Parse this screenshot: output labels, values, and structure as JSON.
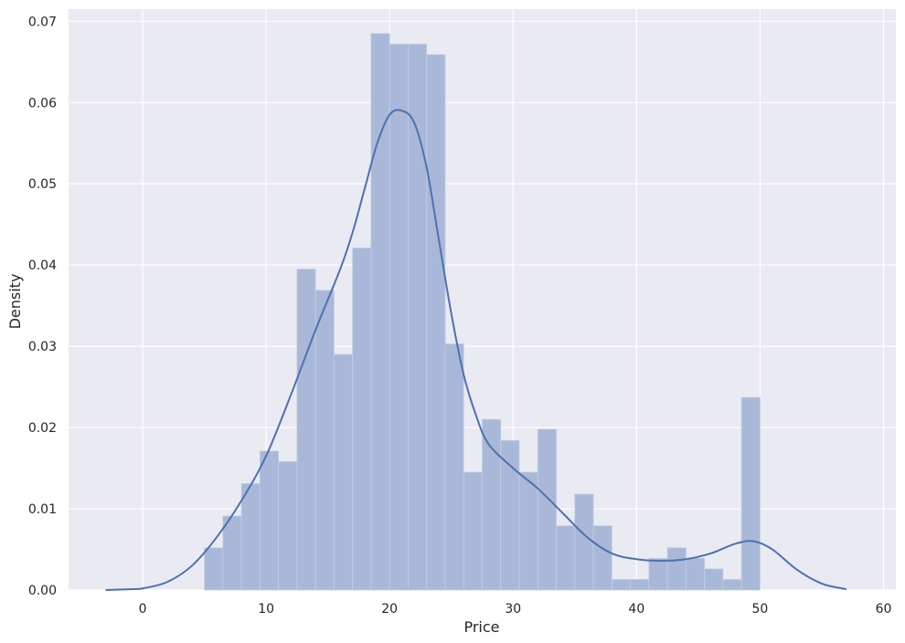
{
  "chart_data": {
    "type": "bar",
    "subtype": "histogram-with-kde",
    "title": "",
    "xlabel": "Price",
    "ylabel": "Density",
    "xlim": [
      -6,
      61
    ],
    "ylim": [
      0,
      0.0715
    ],
    "xticks": [
      0,
      10,
      20,
      30,
      40,
      50,
      60
    ],
    "yticks": [
      0.0,
      0.01,
      0.02,
      0.03,
      0.04,
      0.05,
      0.06,
      0.07
    ],
    "ytick_labels": [
      "0.00",
      "0.01",
      "0.02",
      "0.03",
      "0.04",
      "0.05",
      "0.06",
      "0.07"
    ],
    "grid": true,
    "background": "#eaeaf2",
    "grid_color": "#ffffff",
    "bar_color": "#a9b8d8",
    "line_color": "#4c72b0",
    "bin_width": 1.5,
    "bins": [
      {
        "x0": 5.0,
        "value": 0.0052
      },
      {
        "x0": 6.5,
        "value": 0.0091
      },
      {
        "x0": 8.0,
        "value": 0.0131
      },
      {
        "x0": 9.5,
        "value": 0.0171
      },
      {
        "x0": 11.0,
        "value": 0.0158
      },
      {
        "x0": 12.5,
        "value": 0.0395
      },
      {
        "x0": 14.0,
        "value": 0.0369
      },
      {
        "x0": 15.5,
        "value": 0.029
      },
      {
        "x0": 17.0,
        "value": 0.0421
      },
      {
        "x0": 18.5,
        "value": 0.0685
      },
      {
        "x0": 20.0,
        "value": 0.0672
      },
      {
        "x0": 21.5,
        "value": 0.0672
      },
      {
        "x0": 23.0,
        "value": 0.0659
      },
      {
        "x0": 24.5,
        "value": 0.0303
      },
      {
        "x0": 26.0,
        "value": 0.0145
      },
      {
        "x0": 27.5,
        "value": 0.021
      },
      {
        "x0": 29.0,
        "value": 0.0184
      },
      {
        "x0": 30.5,
        "value": 0.0145
      },
      {
        "x0": 32.0,
        "value": 0.0198
      },
      {
        "x0": 33.5,
        "value": 0.0079
      },
      {
        "x0": 35.0,
        "value": 0.0118
      },
      {
        "x0": 36.5,
        "value": 0.0079
      },
      {
        "x0": 38.0,
        "value": 0.0013
      },
      {
        "x0": 39.5,
        "value": 0.0013
      },
      {
        "x0": 41.0,
        "value": 0.0039
      },
      {
        "x0": 42.5,
        "value": 0.0052
      },
      {
        "x0": 44.0,
        "value": 0.0039
      },
      {
        "x0": 45.5,
        "value": 0.0026
      },
      {
        "x0": 47.0,
        "value": 0.0013
      },
      {
        "x0": 48.5,
        "value": 0.0237
      }
    ],
    "kde": {
      "x": [
        -3,
        -1,
        0,
        2,
        4,
        6,
        8,
        10,
        12,
        14,
        16,
        17,
        18,
        19,
        20,
        21,
        22,
        23,
        24,
        25,
        26,
        27,
        28,
        30,
        32,
        34,
        36,
        38,
        40,
        42,
        44,
        46,
        48,
        49.5,
        51,
        53,
        55,
        57
      ],
      "y": [
        0.0,
        0.0001,
        0.0002,
        0.001,
        0.003,
        0.0065,
        0.011,
        0.0165,
        0.024,
        0.032,
        0.0395,
        0.044,
        0.0495,
        0.055,
        0.0585,
        0.059,
        0.0575,
        0.052,
        0.043,
        0.034,
        0.0265,
        0.0215,
        0.018,
        0.015,
        0.0125,
        0.0095,
        0.0065,
        0.0045,
        0.0038,
        0.0036,
        0.0038,
        0.0045,
        0.0057,
        0.006,
        0.005,
        0.0025,
        0.0008,
        0.0001
      ]
    }
  }
}
